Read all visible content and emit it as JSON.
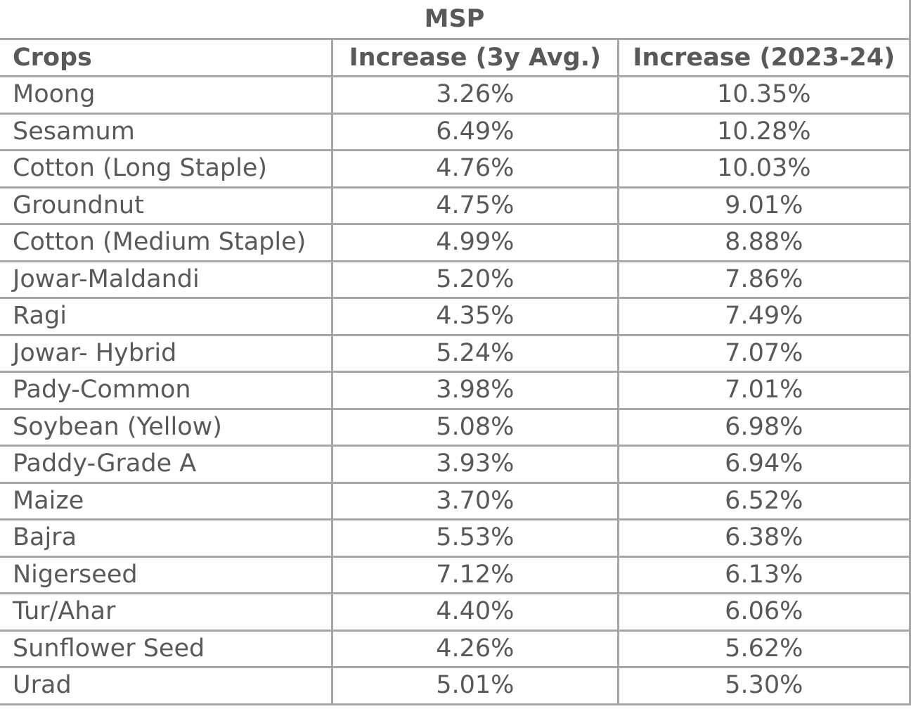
{
  "table": {
    "title": "MSP",
    "headers": [
      "Crops",
      "Increase (3y Avg.)",
      "Increase  (2023-24)"
    ],
    "rows": [
      [
        "Moong",
        "3.26%",
        "10.35%"
      ],
      [
        "Sesamum",
        "6.49%",
        "10.28%"
      ],
      [
        "Cotton (Long Staple)",
        "4.76%",
        "10.03%"
      ],
      [
        "Groundnut",
        "4.75%",
        "9.01%"
      ],
      [
        "Cotton (Medium Staple)",
        "4.99%",
        "8.88%"
      ],
      [
        "Jowar-Maldandi",
        "5.20%",
        "7.86%"
      ],
      [
        "Ragi",
        "4.35%",
        "7.49%"
      ],
      [
        "Jowar- Hybrid",
        "5.24%",
        "7.07%"
      ],
      [
        "Pady-Common",
        "3.98%",
        "7.01%"
      ],
      [
        "Soybean (Yellow)",
        "5.08%",
        "6.98%"
      ],
      [
        "Paddy-Grade A",
        "3.93%",
        "6.94%"
      ],
      [
        "Maize",
        "3.70%",
        "6.52%"
      ],
      [
        "Bajra",
        "5.53%",
        "6.38%"
      ],
      [
        "Nigerseed",
        "7.12%",
        "6.13%"
      ],
      [
        "Tur/Ahar",
        "4.40%",
        "6.06%"
      ],
      [
        "Sunflower Seed",
        "4.26%",
        "5.62%"
      ],
      [
        "Urad",
        "5.01%",
        "5.30%"
      ]
    ]
  },
  "colors": {
    "text": "#595959",
    "border": "#a6a6a6",
    "background": "#ffffff"
  }
}
